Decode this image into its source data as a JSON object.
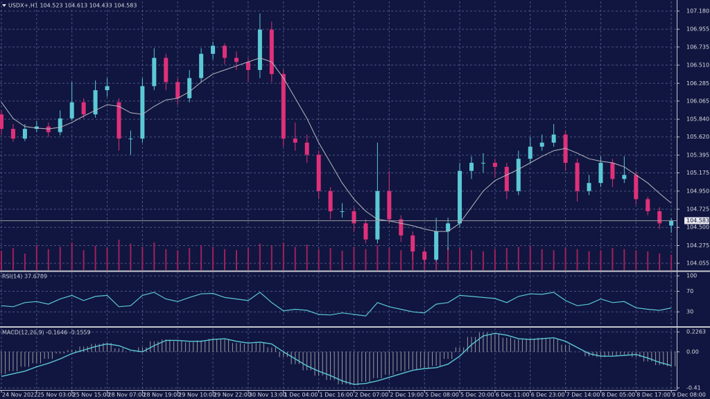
{
  "chart_data": [
    {
      "type": "candlestick",
      "title": "USDX+,H1  104.523 104.613 104.433 104.583",
      "categories": [
        "24 Nov 2022",
        null,
        null,
        "25 Nov 03:00",
        null,
        null,
        "25 Nov 15:00",
        null,
        null,
        "28 Nov 07:00",
        null,
        null,
        "28 Nov 19:00",
        null,
        null,
        "29 Nov 10:00",
        null,
        null,
        "29 Nov 22:00",
        null,
        null,
        "30 Nov 13:00",
        null,
        null,
        "1 Dec 04:00",
        null,
        null,
        "1 Dec 16:00",
        null,
        null,
        "2 Dec 07:00",
        null,
        null,
        "2 Dec 19:00",
        null,
        null,
        "5 Dec 08:00",
        null,
        null,
        "5 Dec 20:00",
        null,
        null,
        "6 Dec 11:00",
        null,
        null,
        "6 Dec 23:00",
        null,
        null,
        "7 Dec 14:00",
        null,
        null,
        "8 Dec 05:00",
        null,
        null,
        "8 Dec 17:00",
        null,
        null,
        "9 Dec 08:00"
      ],
      "open": [
        105.9,
        105.72,
        105.6,
        105.72,
        105.75,
        105.68,
        105.85,
        106.05,
        105.9,
        106.2,
        106.05,
        105.6,
        105.6,
        106.25,
        106.6,
        106.3,
        106.1,
        106.35,
        106.65,
        106.75,
        106.6,
        106.55,
        106.45,
        106.95,
        106.4,
        105.6,
        105.55,
        105.4,
        104.95,
        104.7,
        104.7,
        104.55,
        104.35,
        104.95,
        104.6,
        104.4,
        104.2,
        104.1,
        104.45,
        104.55,
        105.2,
        105.3,
        105.3,
        105.25,
        104.95,
        105.35,
        105.5,
        105.55,
        105.65,
        105.3,
        104.95,
        105.05,
        105.3,
        105.1,
        105.15,
        104.85,
        104.7,
        104.523
      ],
      "high": [
        105.95,
        105.78,
        105.78,
        105.82,
        105.8,
        105.95,
        106.3,
        106.1,
        106.32,
        106.35,
        106.1,
        105.7,
        106.35,
        106.72,
        106.65,
        106.35,
        106.45,
        106.72,
        106.8,
        106.78,
        106.68,
        106.6,
        107.15,
        107.05,
        106.45,
        105.8,
        105.65,
        105.45,
        105.0,
        104.8,
        104.75,
        104.6,
        105.55,
        105.2,
        104.65,
        104.45,
        104.25,
        104.62,
        104.62,
        105.3,
        105.38,
        105.42,
        105.35,
        105.3,
        105.45,
        105.62,
        105.65,
        105.78,
        105.7,
        105.35,
        105.15,
        105.38,
        105.35,
        105.38,
        105.2,
        104.88,
        104.75,
        104.613
      ],
      "low": [
        105.65,
        105.56,
        105.57,
        105.68,
        105.62,
        105.64,
        105.82,
        105.85,
        105.86,
        106.12,
        105.45,
        105.4,
        105.55,
        106.2,
        106.2,
        106.02,
        106.05,
        106.3,
        106.58,
        106.52,
        106.45,
        106.3,
        106.35,
        106.3,
        105.5,
        105.45,
        105.3,
        104.85,
        104.6,
        104.62,
        104.45,
        104.3,
        104.3,
        104.55,
        104.32,
        104.1,
        104.05,
        104.08,
        104.22,
        104.5,
        105.1,
        105.18,
        105.12,
        104.85,
        104.9,
        105.3,
        105.45,
        105.5,
        105.2,
        104.82,
        104.9,
        105.0,
        105.0,
        105.05,
        104.78,
        104.65,
        104.48,
        104.433
      ],
      "close": [
        105.72,
        105.6,
        105.72,
        105.75,
        105.68,
        105.85,
        106.05,
        105.9,
        106.2,
        106.25,
        105.6,
        105.6,
        106.25,
        106.6,
        106.3,
        106.1,
        106.35,
        106.65,
        106.75,
        106.6,
        106.55,
        106.45,
        106.95,
        106.4,
        105.6,
        105.55,
        105.4,
        104.95,
        104.7,
        104.7,
        104.55,
        104.35,
        104.95,
        104.6,
        104.4,
        104.2,
        104.1,
        104.45,
        104.55,
        105.2,
        105.3,
        105.3,
        105.25,
        104.95,
        105.35,
        105.5,
        105.55,
        105.65,
        105.3,
        104.95,
        105.05,
        105.3,
        105.1,
        105.15,
        104.85,
        104.7,
        104.55,
        104.583
      ],
      "up_color": "#5cc8d6",
      "down_color": "#e0307a",
      "ma": {
        "color": "#b8b8c0",
        "values": [
          106.05,
          105.85,
          105.75,
          105.73,
          105.72,
          105.74,
          105.8,
          105.88,
          105.95,
          106.02,
          106.0,
          105.92,
          105.9,
          106.0,
          106.08,
          106.1,
          106.18,
          106.3,
          106.4,
          106.45,
          106.5,
          106.55,
          106.6,
          106.55,
          106.35,
          106.1,
          105.85,
          105.55,
          105.3,
          105.05,
          104.85,
          104.7,
          104.6,
          104.58,
          104.55,
          104.52,
          104.48,
          104.45,
          104.45,
          104.55,
          104.75,
          104.95,
          105.08,
          105.15,
          105.22,
          105.3,
          105.38,
          105.45,
          105.48,
          105.42,
          105.35,
          105.32,
          105.3,
          105.25,
          105.15,
          105.05,
          104.92,
          104.8
        ]
      },
      "volume": [
        35,
        40,
        30,
        45,
        38,
        42,
        50,
        36,
        44,
        40,
        55,
        48,
        42,
        50,
        38,
        36,
        40,
        45,
        42,
        38,
        36,
        40,
        48,
        44,
        50,
        42,
        46,
        38,
        40,
        35,
        42,
        38,
        45,
        40,
        36,
        32,
        30,
        38,
        42,
        40,
        36,
        34,
        38,
        40,
        42,
        44,
        38,
        36,
        40,
        38,
        34,
        36,
        40,
        38,
        36,
        34,
        30,
        28
      ],
      "volume_color": "#a0205e",
      "vlim": [
        0,
        100
      ],
      "ylim": [
        103.97,
        107.3
      ],
      "yticks": [
        {
          "value": 107.18,
          "label": "107.180"
        },
        106.955,
        106.735,
        {
          "value": 106.51,
          "label": "106.510"
        },
        106.285,
        106.065,
        {
          "value": 105.84,
          "label": "105.840"
        },
        {
          "value": 105.62,
          "label": "105.620"
        },
        105.395,
        105.175,
        {
          "value": 104.95,
          "label": "104.950"
        },
        104.725,
        {
          "value": 104.5,
          "label": "104.500"
        },
        104.275,
        104.055
      ],
      "last_price": 104.583,
      "grid": true
    },
    {
      "type": "line",
      "title": "RSI(14) 37.6789",
      "color": "#5cc8d6",
      "values": [
        42,
        40,
        48,
        50,
        45,
        55,
        62,
        52,
        60,
        62,
        40,
        42,
        62,
        68,
        55,
        50,
        58,
        65,
        66,
        58,
        55,
        52,
        68,
        48,
        32,
        35,
        33,
        25,
        24,
        28,
        25,
        22,
        48,
        40,
        35,
        30,
        28,
        45,
        48,
        62,
        60,
        58,
        56,
        48,
        60,
        65,
        64,
        68,
        52,
        42,
        45,
        55,
        48,
        50,
        38,
        35,
        33,
        37.6789
      ],
      "ylim": [
        2,
        107
      ],
      "yticks": [
        100,
        70,
        30
      ],
      "grid": true
    },
    {
      "type": "macd",
      "title": "MACD(12,26,9) -0.1646 -0.1559",
      "color": "#5cc8d6",
      "histogram_color": "#9a9aa6",
      "histogram": [
        -0.25,
        -0.22,
        -0.17,
        -0.13,
        -0.08,
        -0.02,
        0.02,
        0.06,
        0.09,
        0.1,
        0.04,
        0.0,
        0.05,
        0.12,
        0.14,
        0.12,
        0.11,
        0.13,
        0.15,
        0.14,
        0.1,
        0.09,
        0.1,
        0.05,
        -0.06,
        -0.14,
        -0.21,
        -0.27,
        -0.32,
        -0.37,
        -0.38,
        -0.34,
        -0.3,
        -0.26,
        -0.22,
        -0.2,
        -0.18,
        -0.16,
        -0.08,
        0.05,
        0.17,
        0.22,
        0.2,
        0.16,
        0.14,
        0.15,
        0.16,
        0.15,
        0.08,
        0.0,
        -0.05,
        -0.06,
        -0.04,
        -0.03,
        -0.06,
        -0.11,
        -0.15,
        -0.1646
      ],
      "signal": [
        -0.28,
        -0.25,
        -0.22,
        -0.17,
        -0.13,
        -0.08,
        -0.02,
        0.02,
        0.06,
        0.09,
        0.07,
        0.02,
        0.0,
        0.07,
        0.13,
        0.13,
        0.12,
        0.12,
        0.14,
        0.15,
        0.12,
        0.1,
        0.11,
        0.09,
        0.0,
        -0.08,
        -0.16,
        -0.22,
        -0.27,
        -0.33,
        -0.37,
        -0.36,
        -0.33,
        -0.29,
        -0.25,
        -0.21,
        -0.19,
        -0.18,
        -0.14,
        -0.05,
        0.08,
        0.18,
        0.21,
        0.19,
        0.15,
        0.14,
        0.15,
        0.16,
        0.12,
        0.05,
        -0.02,
        -0.05,
        -0.05,
        -0.04,
        -0.03,
        -0.07,
        -0.12,
        -0.1559
      ],
      "ylim": [
        -0.434,
        0.267
      ],
      "yticks": [
        0.2263,
        {
          "value": 0,
          "label": "0.00"
        },
        -0.41
      ],
      "grid": true
    }
  ]
}
